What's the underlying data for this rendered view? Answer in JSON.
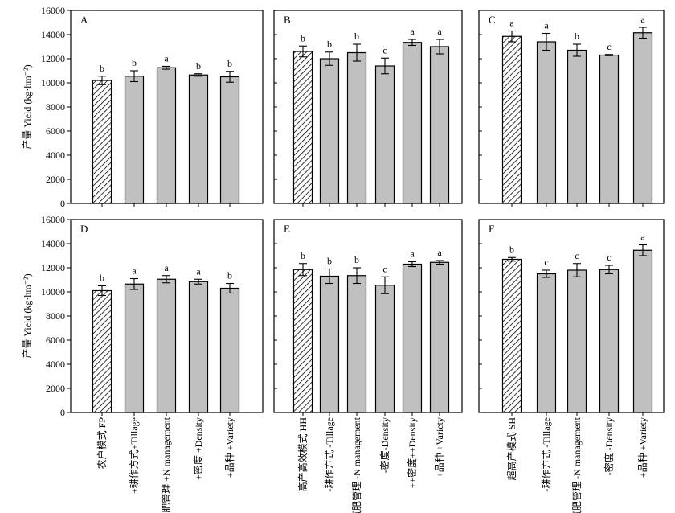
{
  "chart_data": {
    "type": "bar",
    "ylabel": "产量 Yield (kg·hm⁻²)",
    "ylim": [
      0,
      16000
    ],
    "yticks": [
      0,
      2000,
      4000,
      6000,
      8000,
      10000,
      12000,
      14000,
      16000
    ],
    "column_categories": [
      [
        "农户模式 FP",
        "+耕作方式+Tillage",
        "+氮肥管理 +N management",
        "+密度 +Density",
        "+品种 +Variety"
      ],
      [
        "高产高效模式 HH",
        "-耕作方式 -Tillage",
        "-氮肥管理 -N management",
        "-密度-Density",
        "++密度++Density",
        "+品种 +Variety"
      ],
      [
        "超高产模式 SH",
        "-耕作方式 -Tillage",
        "-氮肥管理 -N management",
        "-密度 -Density",
        "+品种 +Variety"
      ]
    ],
    "panels": [
      {
        "label": "A",
        "values": [
          10200,
          10550,
          11250,
          10650,
          10500
        ],
        "errors": [
          350,
          450,
          120,
          100,
          450
        ],
        "letters": [
          "b",
          "b",
          "a",
          "b",
          "b"
        ]
      },
      {
        "label": "B",
        "values": [
          12600,
          12000,
          12500,
          11400,
          13350,
          13000
        ],
        "errors": [
          450,
          550,
          700,
          650,
          250,
          600
        ],
        "letters": [
          "b",
          "b",
          "b",
          "c",
          "a",
          "a"
        ]
      },
      {
        "label": "C",
        "values": [
          13850,
          13400,
          12700,
          12300,
          14150
        ],
        "errors": [
          450,
          700,
          500,
          50,
          450
        ],
        "letters": [
          "a",
          "a",
          "b",
          "c",
          "a"
        ]
      },
      {
        "label": "D",
        "values": [
          10100,
          10650,
          11050,
          10850,
          10300
        ],
        "errors": [
          400,
          450,
          300,
          200,
          400
        ],
        "letters": [
          "b",
          "a",
          "a",
          "a",
          "b"
        ]
      },
      {
        "label": "E",
        "values": [
          11850,
          11300,
          11350,
          10550,
          12300,
          12450
        ],
        "errors": [
          500,
          600,
          650,
          700,
          200,
          150
        ],
        "letters": [
          "b",
          "b",
          "b",
          "c",
          "a",
          "a"
        ]
      },
      {
        "label": "F",
        "values": [
          12700,
          11500,
          11800,
          11850,
          13450
        ],
        "errors": [
          150,
          300,
          550,
          350,
          450
        ],
        "letters": [
          "b",
          "c",
          "c",
          "c",
          "a"
        ]
      }
    ]
  }
}
